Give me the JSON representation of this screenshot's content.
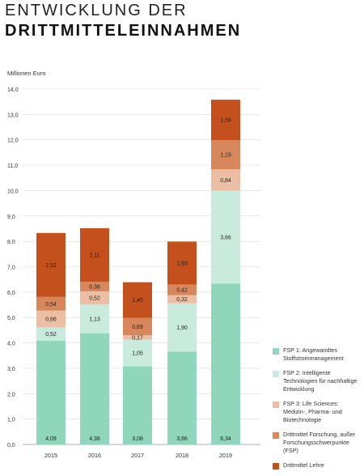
{
  "header": {
    "title_line1": "ENTWICKLUNG DER",
    "title_line2": "DRITTMITTELEINNAHMEN"
  },
  "chart_data": {
    "type": "bar",
    "stacked": true,
    "ylabel": "Millionen Euro",
    "xlabel": "",
    "ylim": [
      0,
      14
    ],
    "yticks": [
      "0,0",
      "1,0",
      "2,0",
      "3,0",
      "4,0",
      "5,0",
      "6,0",
      "7,0",
      "8,0",
      "9,0",
      "10,0",
      "11,0",
      "12,0",
      "13,0",
      "14,0"
    ],
    "categories": [
      "2015",
      "2016",
      "2017",
      "2018",
      "2019"
    ],
    "legend_position": "bottom-right",
    "series": [
      {
        "name": "FSP 1: Angewandtes Stoffstrommanagement",
        "color": "#8fd6bd",
        "values": [
          4.09,
          4.38,
          3.08,
          3.66,
          6.34
        ],
        "labels": [
          "4,09",
          "4,38",
          "3,08",
          "3,66",
          "6,34"
        ]
      },
      {
        "name": "FSP 2: Intelligente Technologien für nachhaltige Entwicklung",
        "color": "#c9ebde",
        "values": [
          0.52,
          1.13,
          1.05,
          1.9,
          3.66
        ],
        "labels": [
          "0,52",
          "1,13",
          "1,05",
          "1,90",
          "3,66"
        ]
      },
      {
        "name": "FSP 3: Life Sciences: Medizin-, Pharma- und Biotechnologie",
        "color": "#ecbfa4",
        "values": [
          0.66,
          0.52,
          0.17,
          0.32,
          0.84
        ],
        "labels": [
          "0,66",
          "0,52",
          "0,17",
          "0,32",
          "0,84"
        ]
      },
      {
        "name": "Drittmittel Forschung, außer Forschungsschwerpunkte (FSP)",
        "color": "#d8875c",
        "values": [
          0.54,
          0.38,
          0.69,
          0.42,
          1.15
        ],
        "labels": [
          "0,54",
          "0,38",
          "0,69",
          "0,42",
          "1,15"
        ]
      },
      {
        "name": "Drittmittel Lehre",
        "color": "#c4501d",
        "values": [
          2.52,
          2.11,
          1.4,
          1.69,
          1.59
        ],
        "labels": [
          "2,52",
          "2,11",
          "1,40",
          "1,69",
          "1,59"
        ]
      }
    ]
  }
}
